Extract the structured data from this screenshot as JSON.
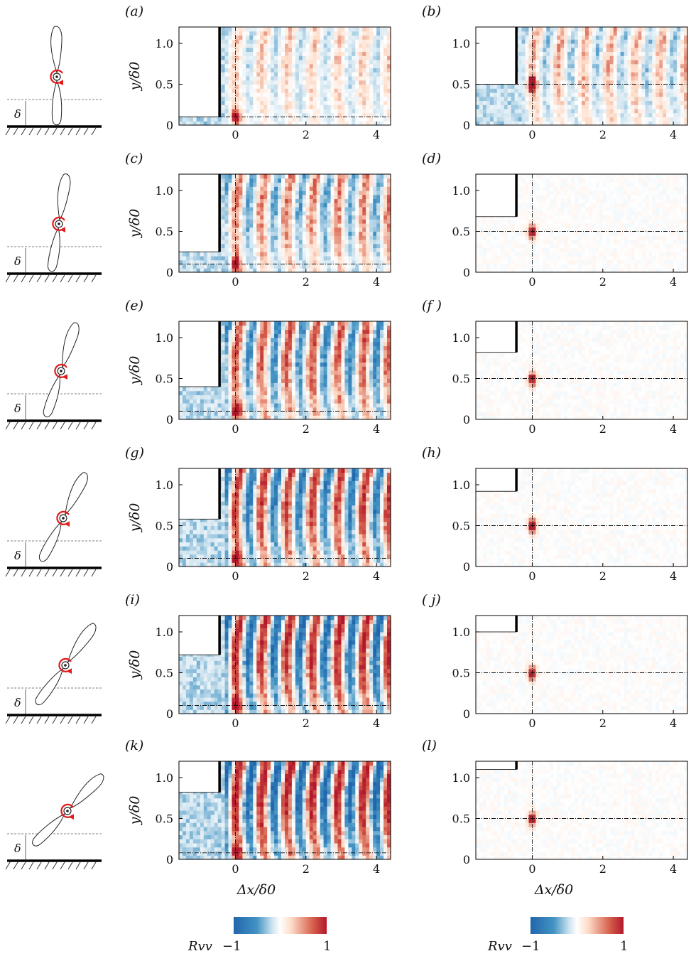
{
  "figure": {
    "xlabel": "Δx/δ0",
    "ylabel": "y/δ0",
    "delta_symbol": "δ",
    "colorbar": {
      "label": "Rvv",
      "min_label": "−1",
      "max_label": "1",
      "colors": [
        "#2166ac",
        "#4393c3",
        "#d1e5f0",
        "#ffffff",
        "#fddbc7",
        "#d6604d",
        "#b2182b"
      ]
    },
    "rotation_arrow_color": "#e31a1c",
    "panels": [
      {
        "label": "(a)",
        "left_label": "(a)"
      },
      {
        "label": "(b)"
      },
      {
        "label": "(c)"
      },
      {
        "label": "(d)"
      },
      {
        "label": "(e)"
      },
      {
        "label": "(f )"
      },
      {
        "label": "(g)"
      },
      {
        "label": "(h)"
      },
      {
        "label": "(i)"
      },
      {
        "label": "( j)"
      },
      {
        "label": "(k)"
      },
      {
        "label": "(l)"
      }
    ]
  },
  "chart_data": [
    {
      "type": "heatmap",
      "panel": "(a)",
      "x_ticks": [
        "0",
        "2",
        "4"
      ],
      "y_ticks": [
        "0",
        "0.5",
        "1.0"
      ],
      "xlim": [
        -1.6,
        4.4
      ],
      "ylim": [
        0,
        1.2
      ],
      "reference_point": [
        0,
        0.1
      ],
      "wake_strength": 0.35,
      "mask_top": 0.1
    },
    {
      "type": "heatmap",
      "panel": "(b)",
      "x_ticks": [
        "0",
        "2",
        "4"
      ],
      "y_ticks": [
        "0",
        "0.5",
        "1.0"
      ],
      "xlim": [
        -1.6,
        4.4
      ],
      "ylim": [
        0,
        1.2
      ],
      "reference_point": [
        0,
        0.5
      ],
      "wake_strength": 0.45,
      "mask_top": 0.5
    },
    {
      "type": "heatmap",
      "panel": "(c)",
      "x_ticks": [
        "0",
        "2",
        "4"
      ],
      "y_ticks": [
        "0",
        "0.5",
        "1.0"
      ],
      "xlim": [
        -1.6,
        4.4
      ],
      "ylim": [
        0,
        1.2
      ],
      "reference_point": [
        0,
        0.1
      ],
      "wake_strength": 0.6,
      "mask_top": 0.25
    },
    {
      "type": "heatmap",
      "panel": "(d)",
      "x_ticks": [
        "0",
        "2",
        "4"
      ],
      "y_ticks": [
        "0",
        "0.5",
        "1.0"
      ],
      "xlim": [
        -1.6,
        4.4
      ],
      "ylim": [
        0,
        1.2
      ],
      "reference_point": [
        0,
        0.5
      ],
      "wake_strength": 0.0,
      "mask_top": 0.68
    },
    {
      "type": "heatmap",
      "panel": "(e)",
      "x_ticks": [
        "0",
        "2",
        "4"
      ],
      "y_ticks": [
        "0",
        "0.5",
        "1.0"
      ],
      "xlim": [
        -1.6,
        4.4
      ],
      "ylim": [
        0,
        1.2
      ],
      "reference_point": [
        0,
        0.1
      ],
      "wake_strength": 0.75,
      "mask_top": 0.4
    },
    {
      "type": "heatmap",
      "panel": "(f )",
      "x_ticks": [
        "0",
        "2",
        "4"
      ],
      "y_ticks": [
        "0",
        "0.5",
        "1.0"
      ],
      "xlim": [
        -1.6,
        4.4
      ],
      "ylim": [
        0,
        1.2
      ],
      "reference_point": [
        0,
        0.5
      ],
      "wake_strength": 0.0,
      "mask_top": 0.82
    },
    {
      "type": "heatmap",
      "panel": "(g)",
      "x_ticks": [
        "0",
        "2",
        "4"
      ],
      "y_ticks": [
        "0",
        "0.5",
        "1.0"
      ],
      "xlim": [
        -1.6,
        4.4
      ],
      "ylim": [
        0,
        1.2
      ],
      "reference_point": [
        0,
        0.1
      ],
      "wake_strength": 0.85,
      "mask_top": 0.58
    },
    {
      "type": "heatmap",
      "panel": "(h)",
      "x_ticks": [
        "0",
        "2",
        "4"
      ],
      "y_ticks": [
        "0",
        "0.5",
        "1.0"
      ],
      "xlim": [
        -1.6,
        4.4
      ],
      "ylim": [
        0,
        1.2
      ],
      "reference_point": [
        0,
        0.5
      ],
      "wake_strength": 0.0,
      "mask_top": 0.92
    },
    {
      "type": "heatmap",
      "panel": "(i)",
      "x_ticks": [
        "0",
        "2",
        "4"
      ],
      "y_ticks": [
        "0",
        "0.5",
        "1.0"
      ],
      "xlim": [
        -1.6,
        4.4
      ],
      "ylim": [
        0,
        1.2
      ],
      "reference_point": [
        0,
        0.1
      ],
      "wake_strength": 0.95,
      "mask_top": 0.72
    },
    {
      "type": "heatmap",
      "panel": "( j)",
      "x_ticks": [
        "0",
        "2",
        "4"
      ],
      "y_ticks": [
        "0",
        "0.5",
        "1.0"
      ],
      "xlim": [
        -1.6,
        4.4
      ],
      "ylim": [
        0,
        1.2
      ],
      "reference_point": [
        0,
        0.5
      ],
      "wake_strength": 0.0,
      "mask_top": 1.0
    },
    {
      "type": "heatmap",
      "panel": "(k)",
      "x_ticks": [
        "0",
        "2",
        "4"
      ],
      "y_ticks": [
        "0",
        "0.5",
        "1.0"
      ],
      "xlim": [
        -1.6,
        4.4
      ],
      "ylim": [
        0,
        1.2
      ],
      "reference_point": [
        0,
        0.08
      ],
      "wake_strength": 1.0,
      "mask_top": 0.82
    },
    {
      "type": "heatmap",
      "panel": "(l)",
      "x_ticks": [
        "0",
        "2",
        "4"
      ],
      "y_ticks": [
        "0",
        "0.5",
        "1.0"
      ],
      "xlim": [
        -1.6,
        4.4
      ],
      "ylim": [
        0,
        1.2
      ],
      "reference_point": [
        0,
        0.5
      ],
      "wake_strength": 0.0,
      "mask_top": 1.1
    }
  ]
}
